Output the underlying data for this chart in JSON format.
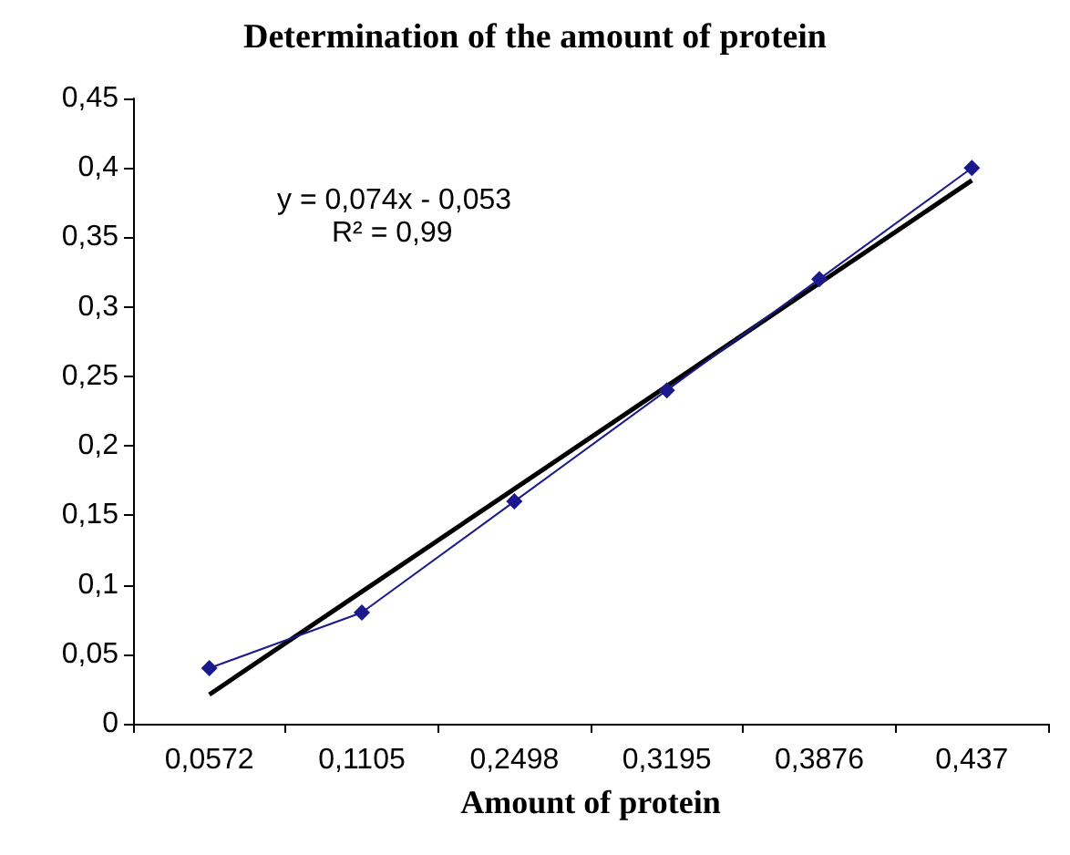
{
  "chart_data": {
    "type": "line",
    "title": "Determination of the amount of protein",
    "xlabel": "Amount of protein",
    "categories": [
      "0,0572",
      "0,1105",
      "0,2498",
      "0,3195",
      "0,3876",
      "0,437"
    ],
    "series": [
      {
        "color": "#1a1a8c",
        "values": [
          0.04,
          0.08,
          0.16,
          0.24,
          0.32,
          0.4
        ],
        "marker": "diamond"
      },
      {
        "type": "line",
        "color": "#000000",
        "values": [
          0.021,
          0.095,
          0.169,
          0.243,
          0.317,
          0.391
        ],
        "marker": "none"
      }
    ],
    "ylim": [
      0,
      0.45
    ],
    "yticks": [
      {
        "value": 0,
        "label": "0"
      },
      {
        "value": 0.05,
        "label": "0,05"
      },
      {
        "value": 0.1,
        "label": "0,1"
      },
      {
        "value": 0.15,
        "label": "0,15"
      },
      {
        "value": 0.2,
        "label": "0,2"
      },
      {
        "value": 0.25,
        "label": "0,25"
      },
      {
        "value": 0.3,
        "label": "0,3"
      },
      {
        "value": 0.35,
        "label": "0,35"
      },
      {
        "value": 0.4,
        "label": "0,4"
      },
      {
        "value": 0.45,
        "label": "0,45"
      }
    ],
    "annotations": [
      "y = 0,074x - 0,053",
      "R² = 0,99"
    ],
    "grid": false
  }
}
